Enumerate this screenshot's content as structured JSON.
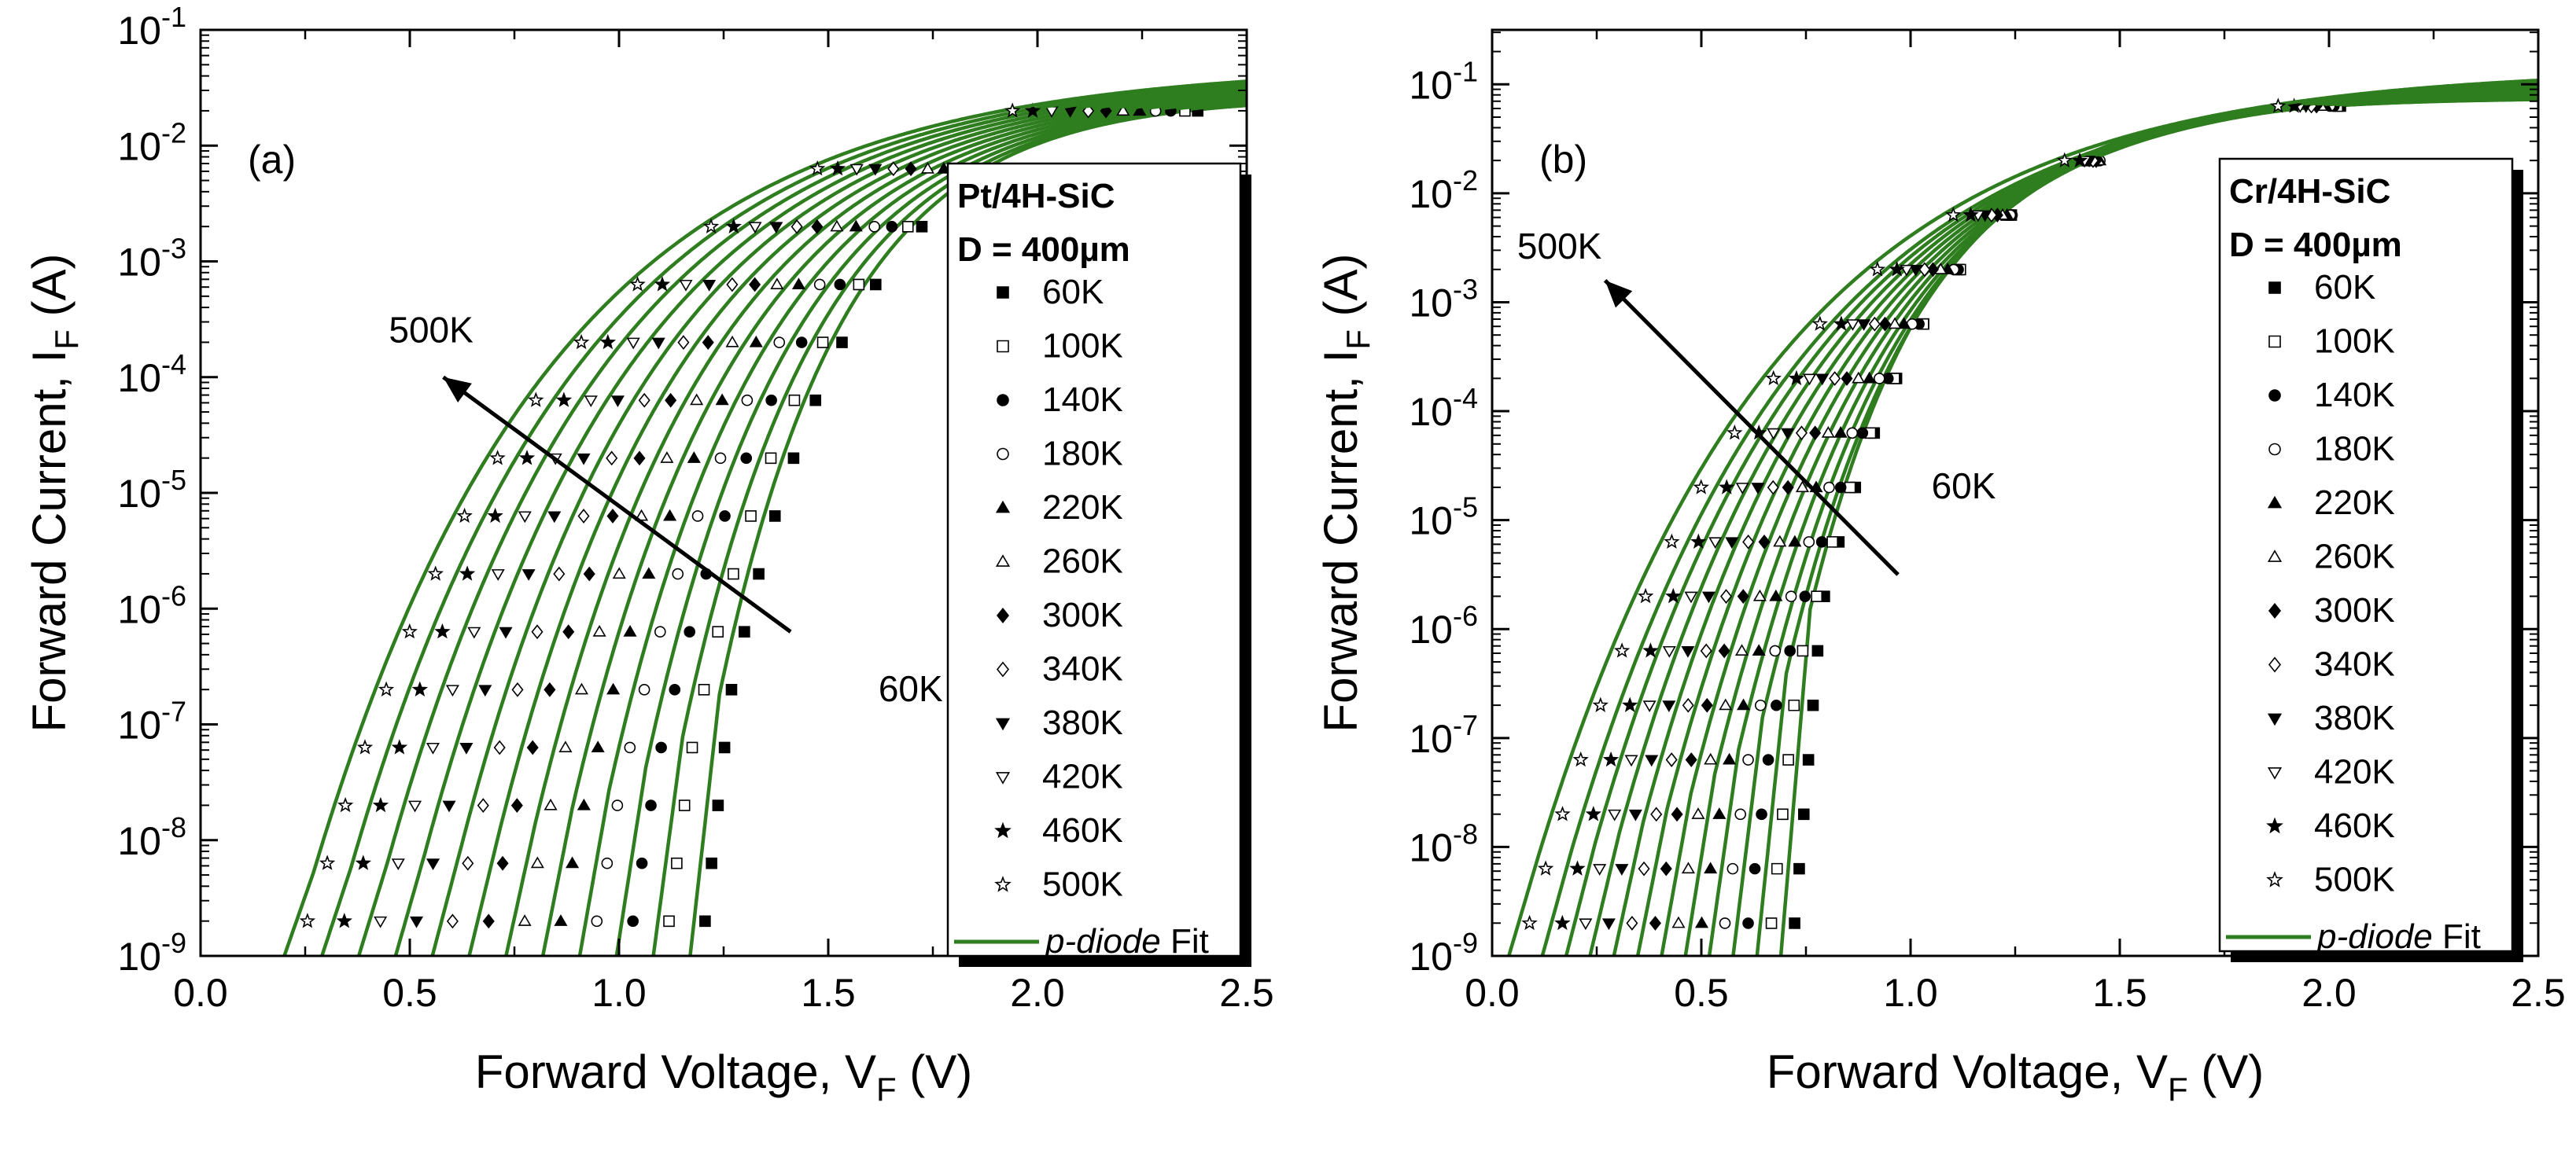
{
  "chart_data": [
    {
      "type": "scatter",
      "panel_label": "(a)",
      "xlabel_main": "Forward Voltage, V",
      "xlabel_sub": "F",
      "xlabel_unit": " (V)",
      "ylabel_main": "Forward Current, I",
      "ylabel_sub": "F",
      "ylabel_unit": " (A)",
      "xlim": [
        0,
        2.5
      ],
      "ylim_exp": [
        -9,
        -1
      ],
      "log_y": true,
      "x_ticks": [
        "0.0",
        "0.5",
        "1.0",
        "1.5",
        "2.0",
        "2.5"
      ],
      "y_ticks": [
        {
          "base": "10",
          "exp": "-9"
        },
        {
          "base": "10",
          "exp": "-8"
        },
        {
          "base": "10",
          "exp": "-7"
        },
        {
          "base": "10",
          "exp": "-6"
        },
        {
          "base": "10",
          "exp": "-5"
        },
        {
          "base": "10",
          "exp": "-4"
        },
        {
          "base": "10",
          "exp": "-3"
        },
        {
          "base": "10",
          "exp": "-2"
        },
        {
          "base": "10",
          "exp": "-1"
        }
      ],
      "legend_title_1": "Pt/4H-SiC",
      "legend_title_2": "D = 400µm",
      "legend_position": "right",
      "fit_label_italic": "p-diode",
      "fit_label_rest": " Fit",
      "fit_color": "#2e7d1e",
      "annotation_high": "500K",
      "annotation_low": "60K",
      "arrow": {
        "from": [
          1.41,
          -6.2
        ],
        "to": [
          0.58,
          -4.0
        ]
      },
      "annotation_high_pos": [
        0.45,
        -3.7
      ],
      "annotation_low_pos": [
        1.62,
        -6.8
      ],
      "turn_on_v": 1.17,
      "shift_per_step": 0.088,
      "upper_current_exp": -1.3,
      "series": [
        {
          "name": "60K",
          "marker": "square-filled",
          "onset_v": 1.17,
          "slope_v_per_decade": 0.031
        },
        {
          "name": "100K",
          "marker": "square-open",
          "onset_v": 1.082,
          "slope_v_per_decade": 0.037
        },
        {
          "name": "140K",
          "marker": "circle-filled",
          "onset_v": 0.994,
          "slope_v_per_decade": 0.043
        },
        {
          "name": "180K",
          "marker": "circle-open",
          "onset_v": 0.906,
          "slope_v_per_decade": 0.049
        },
        {
          "name": "220K",
          "marker": "triangle-filled",
          "onset_v": 0.818,
          "slope_v_per_decade": 0.055
        },
        {
          "name": "260K",
          "marker": "triangle-open",
          "onset_v": 0.73,
          "slope_v_per_decade": 0.061
        },
        {
          "name": "300K",
          "marker": "diamond-filled",
          "onset_v": 0.642,
          "slope_v_per_decade": 0.067
        },
        {
          "name": "340K",
          "marker": "diamond-open",
          "onset_v": 0.554,
          "slope_v_per_decade": 0.073
        },
        {
          "name": "380K",
          "marker": "triangle-down-filled",
          "onset_v": 0.466,
          "slope_v_per_decade": 0.079
        },
        {
          "name": "420K",
          "marker": "triangle-down-open",
          "onset_v": 0.378,
          "slope_v_per_decade": 0.085
        },
        {
          "name": "460K",
          "marker": "star-filled",
          "onset_v": 0.29,
          "slope_v_per_decade": 0.091
        },
        {
          "name": "500K",
          "marker": "star-open",
          "onset_v": 0.2,
          "slope_v_per_decade": 0.097
        }
      ]
    },
    {
      "type": "scatter",
      "panel_label": "(b)",
      "xlabel_main": "Forward Voltage, V",
      "xlabel_sub": "F",
      "xlabel_unit": " (V)",
      "ylabel_main": "Forward Current, I",
      "ylabel_sub": "F",
      "ylabel_unit": " (A)",
      "xlim": [
        0,
        2.5
      ],
      "ylim_exp": [
        -9,
        -0.5
      ],
      "log_y": true,
      "x_ticks": [
        "0.0",
        "0.5",
        "1.0",
        "1.5",
        "2.0",
        "2.5"
      ],
      "y_ticks": [
        {
          "base": "10",
          "exp": "-9"
        },
        {
          "base": "10",
          "exp": "-8"
        },
        {
          "base": "10",
          "exp": "-7"
        },
        {
          "base": "10",
          "exp": "-6"
        },
        {
          "base": "10",
          "exp": "-5"
        },
        {
          "base": "10",
          "exp": "-4"
        },
        {
          "base": "10",
          "exp": "-3"
        },
        {
          "base": "10",
          "exp": "-2"
        },
        {
          "base": "10",
          "exp": "-1"
        }
      ],
      "legend_title_1": "Cr/4H-SiC",
      "legend_title_2": "D = 400µm",
      "legend_position": "right",
      "fit_label_italic": "p-diode",
      "fit_label_rest": " Fit",
      "fit_color": "#2e7d1e",
      "annotation_high": "500K",
      "annotation_low": "60K",
      "arrow": {
        "from": [
          0.97,
          -5.5
        ],
        "to": [
          0.27,
          -2.8
        ]
      },
      "annotation_high_pos": [
        0.06,
        -2.6
      ],
      "annotation_low_pos": [
        1.05,
        -4.8
      ],
      "turn_on_v": 0.69,
      "shift_per_step": 0.057,
      "upper_current_exp": -0.85,
      "series": [
        {
          "name": "60K",
          "marker": "square-filled",
          "onset_v": 0.69,
          "slope_v_per_decade": 0.022
        },
        {
          "name": "100K",
          "marker": "square-open",
          "onset_v": 0.633,
          "slope_v_per_decade": 0.027
        },
        {
          "name": "140K",
          "marker": "circle-filled",
          "onset_v": 0.576,
          "slope_v_per_decade": 0.032
        },
        {
          "name": "180K",
          "marker": "circle-open",
          "onset_v": 0.519,
          "slope_v_per_decade": 0.037
        },
        {
          "name": "220K",
          "marker": "triangle-filled",
          "onset_v": 0.462,
          "slope_v_per_decade": 0.042
        },
        {
          "name": "260K",
          "marker": "triangle-open",
          "onset_v": 0.405,
          "slope_v_per_decade": 0.047
        },
        {
          "name": "300K",
          "marker": "diamond-filled",
          "onset_v": 0.348,
          "slope_v_per_decade": 0.052
        },
        {
          "name": "340K",
          "marker": "diamond-open",
          "onset_v": 0.291,
          "slope_v_per_decade": 0.057
        },
        {
          "name": "380K",
          "marker": "triangle-down-filled",
          "onset_v": 0.234,
          "slope_v_per_decade": 0.062
        },
        {
          "name": "420K",
          "marker": "triangle-down-open",
          "onset_v": 0.177,
          "slope_v_per_decade": 0.067
        },
        {
          "name": "460K",
          "marker": "star-filled",
          "onset_v": 0.12,
          "slope_v_per_decade": 0.072
        },
        {
          "name": "500K",
          "marker": "star-open",
          "onset_v": 0.04,
          "slope_v_per_decade": 0.077
        }
      ]
    }
  ]
}
